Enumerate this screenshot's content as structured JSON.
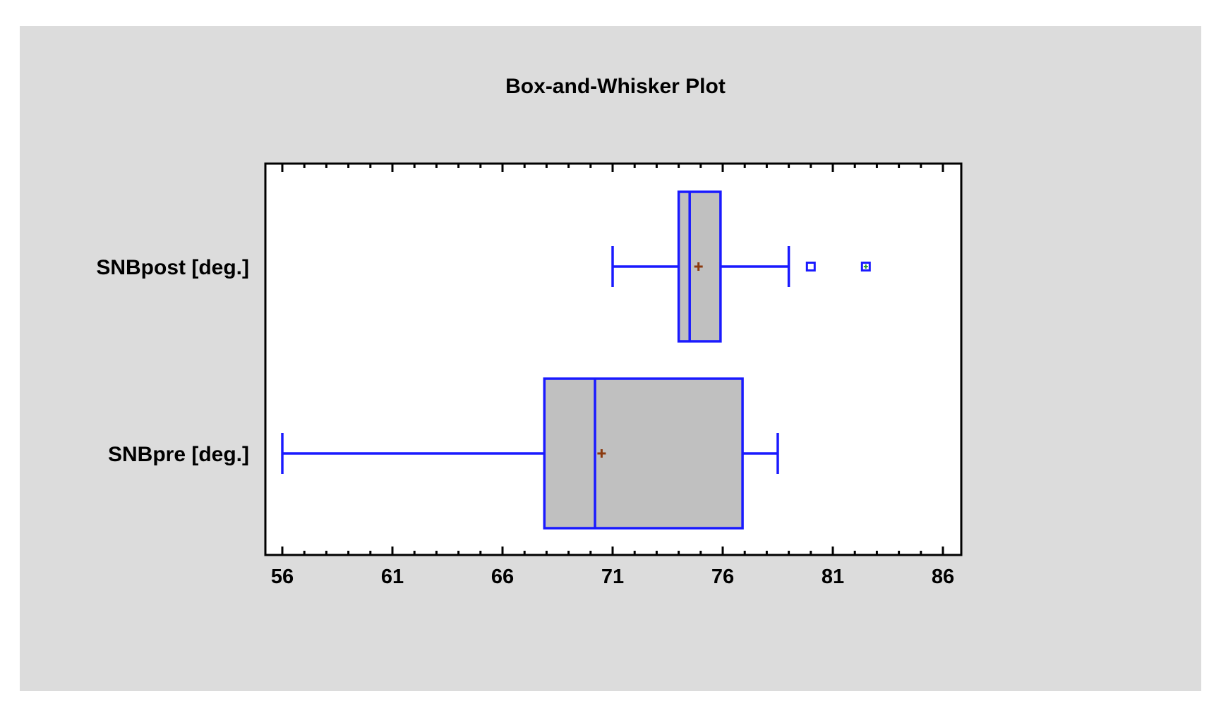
{
  "chart_data": {
    "type": "boxplot",
    "title": "Box-and-Whisker Plot",
    "orientation": "horizontal",
    "xlim": [
      55.2,
      87
    ],
    "x_ticks": [
      56,
      61,
      66,
      71,
      76,
      81,
      86
    ],
    "x_tick_labels": [
      "56",
      "61",
      "66",
      "71",
      "76",
      "81",
      "86"
    ],
    "grid": false,
    "series": [
      {
        "name": "SNBpost [deg.]",
        "whisker_low": 71.0,
        "q1": 74.0,
        "median": 74.5,
        "q3": 75.9,
        "whisker_high": 79.0,
        "mean": 74.9,
        "outliers": [
          80.0,
          82.5
        ]
      },
      {
        "name": "SNBpre [deg.]",
        "whisker_low": 56.0,
        "q1": 67.9,
        "median": 70.2,
        "q3": 76.9,
        "whisker_high": 78.5,
        "mean": 70.5,
        "outliers": []
      }
    ],
    "colors": {
      "box_stroke": "#1a1aff",
      "box_fill": "#c0c0c0",
      "mean_marker": "#8b3a0f",
      "outlier_inner": "#2e9a2e",
      "background": "#dcdcdc",
      "plot_area": "#ffffff"
    }
  }
}
